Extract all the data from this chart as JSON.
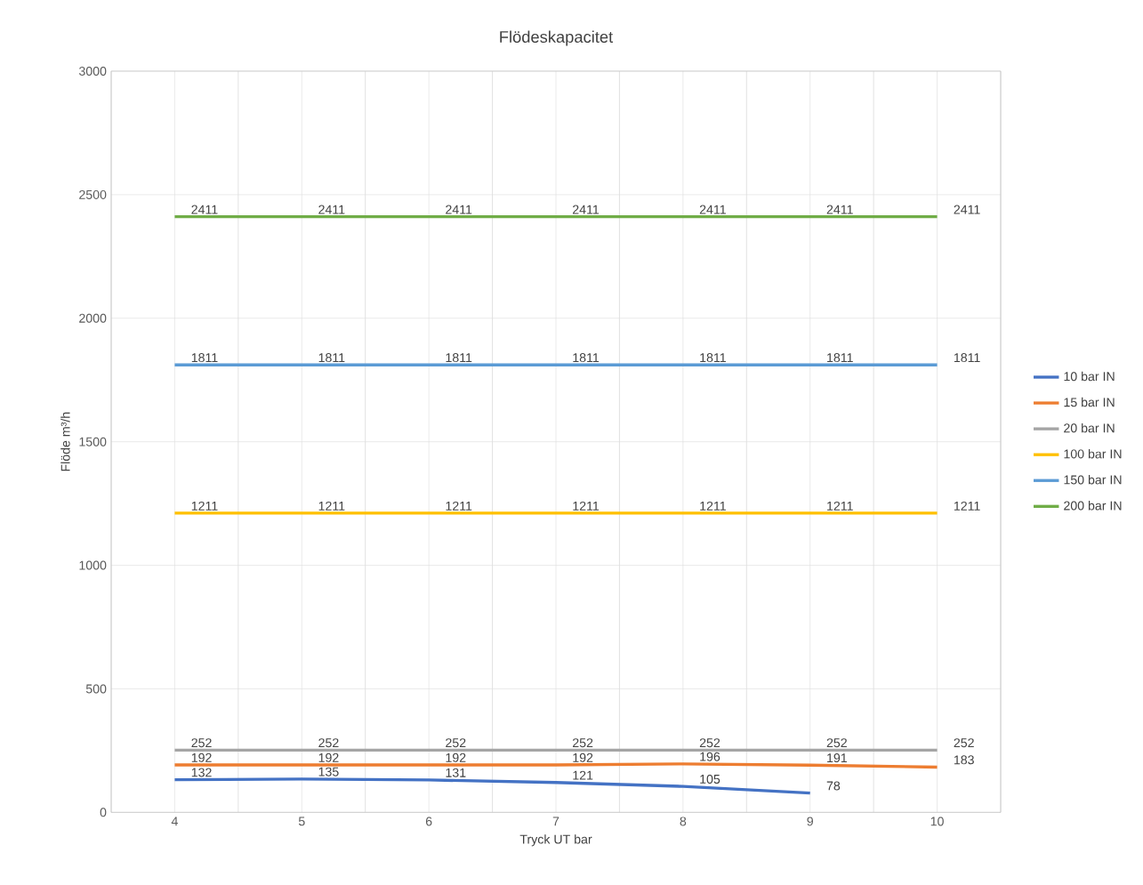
{
  "chart_data": {
    "type": "line",
    "title": "Flödeskapacitet",
    "xlabel": "Tryck UT bar",
    "ylabel": "Flöde m³/h",
    "categories": [
      "4",
      "5",
      "6",
      "7",
      "8",
      "9",
      "10"
    ],
    "series": [
      {
        "name": "10 bar IN",
        "color": "#4472c4",
        "values": [
          132,
          135,
          131,
          121,
          105,
          78,
          null
        ]
      },
      {
        "name": "15 bar IN",
        "color": "#ed7d31",
        "values": [
          192,
          192,
          192,
          192,
          196,
          191,
          183
        ]
      },
      {
        "name": "20 bar IN",
        "color": "#a5a5a5",
        "values": [
          252,
          252,
          252,
          252,
          252,
          252,
          252
        ]
      },
      {
        "name": "100 bar IN",
        "color": "#ffc000",
        "values": [
          1211,
          1211,
          1211,
          1211,
          1211,
          1211,
          1211
        ]
      },
      {
        "name": "150 bar IN",
        "color": "#5b9bd5",
        "values": [
          1811,
          1811,
          1811,
          1811,
          1811,
          1811,
          1811
        ]
      },
      {
        "name": "200 bar IN",
        "color": "#70ad47",
        "values": [
          2411,
          2411,
          2411,
          2411,
          2411,
          2411,
          2411
        ]
      }
    ],
    "ylim": [
      0,
      3000
    ],
    "yticks": [
      0,
      500,
      1000,
      1500,
      2000,
      2500,
      3000
    ],
    "grid": true,
    "legend": "right",
    "data_labels": true,
    "marker": "none",
    "line_style": "solid"
  }
}
